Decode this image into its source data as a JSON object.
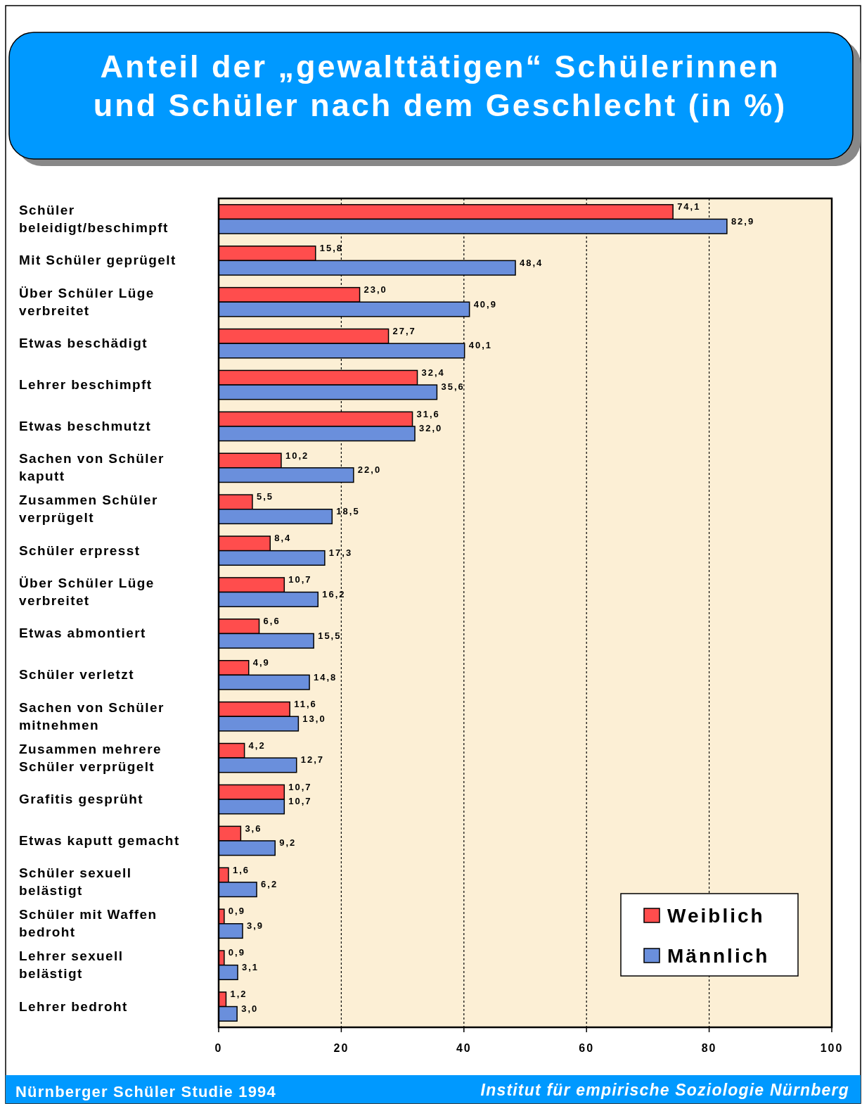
{
  "chart_data": {
    "type": "bar",
    "orientation": "horizontal",
    "title": "Anteil der „gewalttätigen“ Schülerinnen und Schüler nach dem Geschlecht  (in %)",
    "categories": [
      "Schüler beleidigt/beschimpft",
      "Mit Schüler geprügelt",
      "Über Schüler Lüge verbreitet",
      "Etwas beschädigt",
      "Lehrer beschimpft",
      "Etwas beschmutzt",
      "Sachen von Schüler kaputt",
      "Zusammen Schüler verprügelt",
      "Schüler erpresst",
      "Über Schüler Lüge verbreitet",
      "Etwas abmontiert",
      "Schüler verletzt",
      "Sachen von Schüler mitnehmen",
      "Zusammen  mehrere Schüler verprügelt",
      "Grafitis gesprüht",
      "Etwas kaputt gemacht",
      "Schüler sexuell belästigt",
      "Schüler mit Waffen bedroht",
      "Lehrer sexuell belästigt",
      "Lehrer bedroht"
    ],
    "series": [
      {
        "name": "Weiblich",
        "color": "#ff4d4d",
        "values": [
          74.1,
          15.8,
          23.0,
          27.7,
          32.4,
          31.6,
          10.2,
          5.5,
          8.4,
          10.7,
          6.6,
          4.9,
          11.6,
          4.2,
          10.7,
          3.6,
          1.6,
          0.9,
          0.9,
          1.2
        ],
        "value_labels": [
          "74,1",
          "15,8",
          "23,0",
          "27,7",
          "32,4",
          "31,6",
          "10,2",
          "5,5",
          "8,4",
          "10,7",
          "6,6",
          "4,9",
          "11,6",
          "4,2",
          "10,7",
          "3,6",
          "1,6",
          "0,9",
          "0,9",
          "1,2"
        ]
      },
      {
        "name": "Männlich",
        "color": "#6a8fdc",
        "values": [
          82.9,
          48.4,
          40.9,
          40.1,
          35.6,
          32.0,
          22.0,
          18.5,
          17.3,
          16.2,
          15.5,
          14.8,
          13.0,
          12.7,
          10.7,
          9.2,
          6.2,
          3.9,
          3.1,
          3.0
        ],
        "value_labels": [
          "82,9",
          "48,4",
          "40,9",
          "40,1",
          "35,6",
          "32,0",
          "22,0",
          "18,5",
          "17,3",
          "16,2",
          "15,5",
          "14,8",
          "13,0",
          "12,7",
          "10,7",
          "9,2",
          "6,2",
          "3,9",
          "3,1",
          "3,0"
        ]
      }
    ],
    "xlim": [
      0,
      100
    ],
    "xticks": [
      0,
      20,
      40,
      60,
      80,
      100
    ],
    "grid": "x",
    "legend": "bottom right",
    "annotations": [
      "Nürnberger Schüler Studie 1994",
      "Institut für empirische Soziologie Nürnberg"
    ]
  }
}
